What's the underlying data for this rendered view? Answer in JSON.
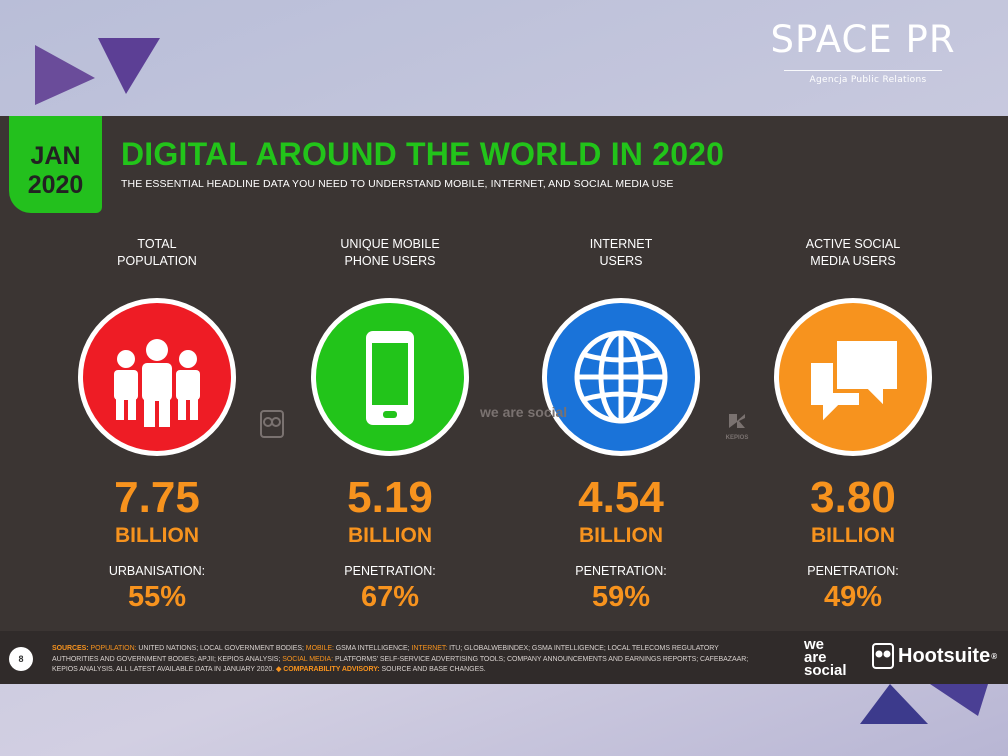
{
  "brand": {
    "logo_text": "SPACE PR",
    "tagline": "Agencja Public Relations"
  },
  "slide": {
    "date_month": "JAN",
    "date_year": "2020",
    "title": "DIGITAL AROUND THE WORLD IN 2020",
    "subtitle": "THE ESSENTIAL HEADLINE DATA YOU NEED TO UNDERSTAND MOBILE, INTERNET, AND SOCIAL MEDIA USE",
    "stats": [
      {
        "label_line1": "TOTAL",
        "label_line2": "POPULATION",
        "value": "7.75",
        "unit": "BILLION",
        "sublabel": "URBANISATION:",
        "subvalue": "55%",
        "color": "#ee1c25",
        "icon": "people-icon"
      },
      {
        "label_line1": "UNIQUE MOBILE",
        "label_line2": "PHONE USERS",
        "value": "5.19",
        "unit": "BILLION",
        "sublabel": "PENETRATION:",
        "subvalue": "67%",
        "color": "#22c41a",
        "icon": "mobile-phone-icon"
      },
      {
        "label_line1": "INTERNET",
        "label_line2": "USERS",
        "value": "4.54",
        "unit": "BILLION",
        "sublabel": "PENETRATION:",
        "subvalue": "59%",
        "color": "#1a73d9",
        "icon": "globe-icon"
      },
      {
        "label_line1": "ACTIVE SOCIAL",
        "label_line2": "MEDIA USERS",
        "value": "3.80",
        "unit": "BILLION",
        "sublabel": "PENETRATION:",
        "subvalue": "49%",
        "color": "#f7931e",
        "icon": "chat-bubbles-icon"
      }
    ],
    "mini_logos": {
      "we_are_social": "we are social",
      "kepios": "KEPIOS"
    },
    "footer": {
      "page_number": "8",
      "sources_label": "SOURCES:",
      "population_label": "POPULATION:",
      "population_text": "UNITED NATIONS; LOCAL GOVERNMENT BODIES;",
      "mobile_label": "MOBILE:",
      "mobile_text": "GSMA INTELLIGENCE;",
      "internet_label": "INTERNET:",
      "internet_text": "ITU; GLOBALWEBINDEX; GSMA INTELLIGENCE; LOCAL TELECOMS REGULATORY AUTHORITIES AND GOVERNMENT BODIES; APJII; KEPIOS ANALYSIS;",
      "social_label": "SOCIAL MEDIA:",
      "social_text": "PLATFORMS' SELF-SERVICE ADVERTISING TOOLS; COMPANY ANNOUNCEMENTS AND EARNINGS REPORTS; CAFEBAZAAR; KEPIOS ANALYSIS. ALL LATEST AVAILABLE DATA IN JANUARY 2020.",
      "advisory_label": "COMPARABILITY ADVISORY:",
      "advisory_text": "SOURCE AND BASE CHANGES.",
      "we_are_social_line1": "we",
      "we_are_social_line2": "are",
      "we_are_social_line3": "social",
      "hootsuite": "Hootsuite"
    }
  }
}
